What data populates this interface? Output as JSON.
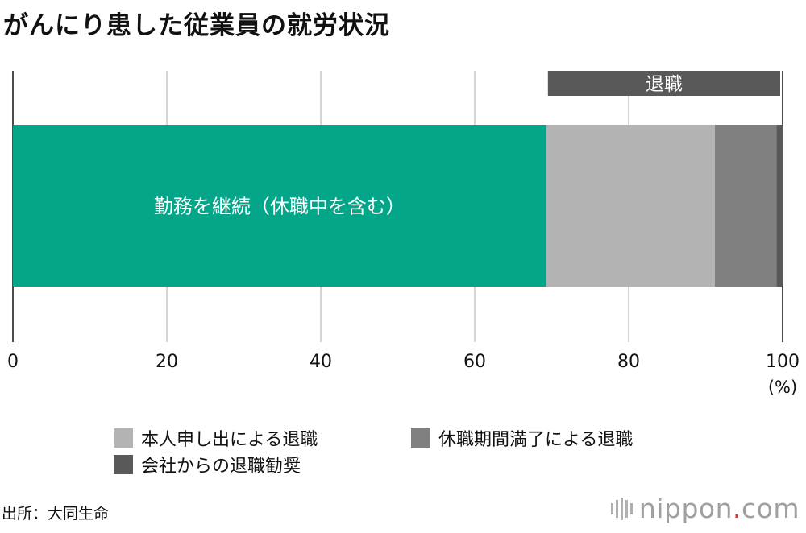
{
  "title": "がんにり患した従業員の就労状況",
  "chart_data": {
    "type": "bar",
    "orientation": "horizontal-stacked",
    "x_ticks": [
      "0",
      "20",
      "40",
      "60",
      "80",
      "100"
    ],
    "x_unit": "(%)",
    "xlim": [
      0,
      100
    ],
    "grid": true,
    "segments": [
      {
        "name": "勤務を継続（休職中を含む）",
        "value": 69.3,
        "color": "#03a688"
      },
      {
        "name": "本人申し出による退職",
        "value": 21.9,
        "color": "#b3b3b3"
      },
      {
        "name": "休職期間満了による退職",
        "value": 8.0,
        "color": "#808080"
      },
      {
        "name": "会社からの退職勧奨",
        "value": 0.8,
        "color": "#595959"
      }
    ],
    "bracket_label": "退職"
  },
  "legend": [
    {
      "label": "本人申し出による退職",
      "color": "#b3b3b3"
    },
    {
      "label": "休職期間満了による退職",
      "color": "#808080"
    },
    {
      "label": "会社からの退職勧奨",
      "color": "#595959"
    }
  ],
  "source": "出所：大同生命",
  "logo": {
    "name": "nippon",
    "dot": ".",
    "suffix": "com"
  }
}
